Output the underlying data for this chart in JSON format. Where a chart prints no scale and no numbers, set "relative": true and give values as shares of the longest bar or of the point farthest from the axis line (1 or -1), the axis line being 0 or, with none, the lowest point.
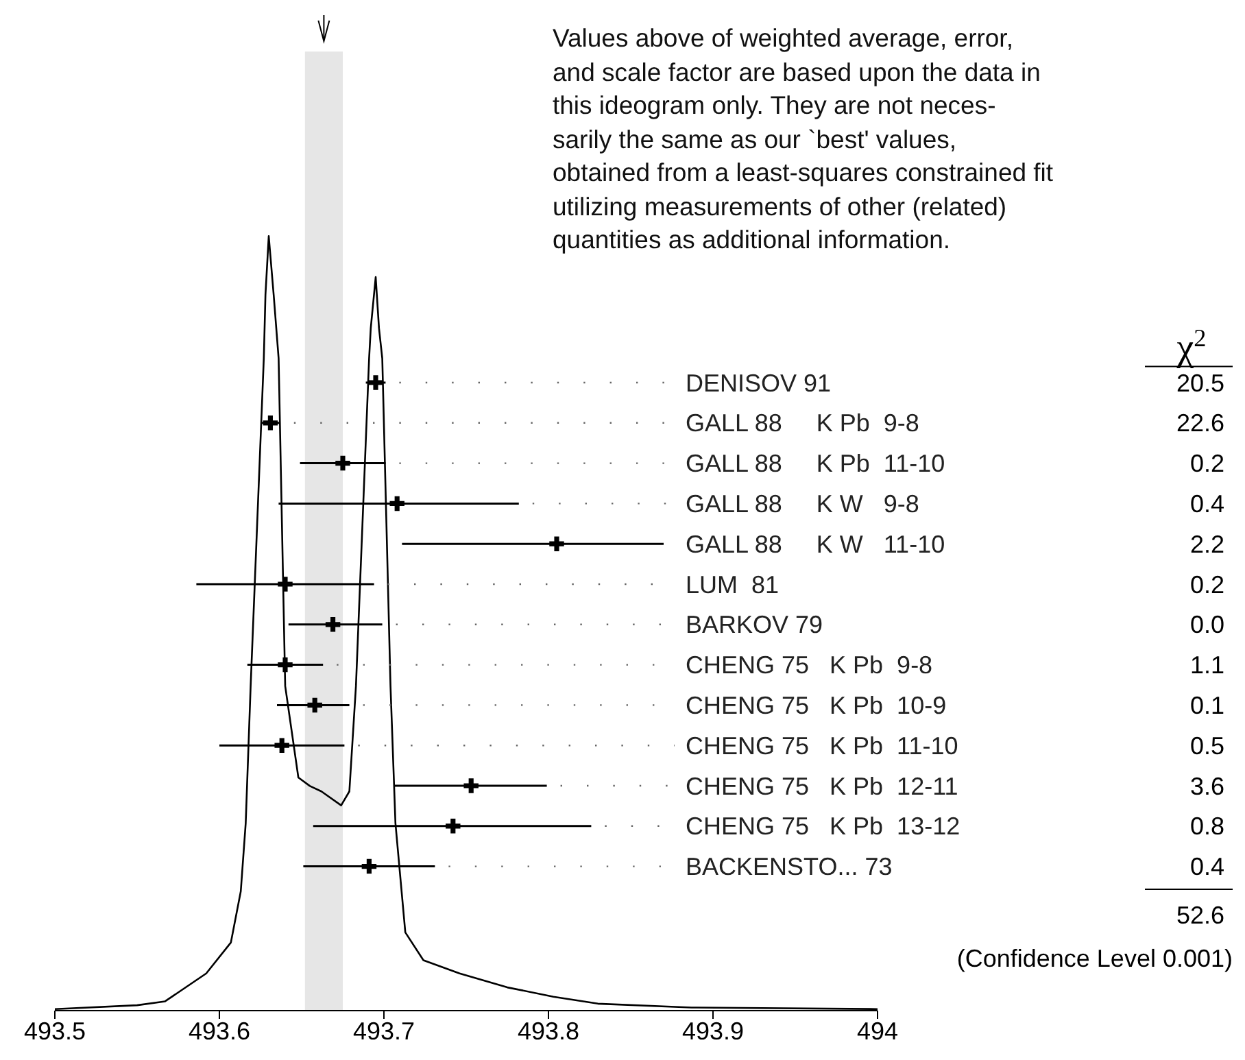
{
  "chart_data": [
    {
      "type": "line",
      "relative": true,
      "xlim": [
        493.5,
        494
      ],
      "xticks": [
        493.5,
        493.6,
        493.7,
        493.8,
        493.9,
        494
      ],
      "color": "#000000",
      "x": [
        493.5,
        493.55,
        493.567,
        493.592,
        493.607,
        493.613,
        493.616,
        493.619,
        493.627,
        493.628,
        493.63,
        493.633,
        493.636,
        493.64,
        493.648,
        493.655,
        493.662,
        493.674,
        493.679,
        493.683,
        493.691,
        493.692,
        493.695,
        493.697,
        493.699,
        493.704,
        493.707,
        493.713,
        493.724,
        493.746,
        493.775,
        493.803,
        493.83,
        493.887,
        494
      ],
      "values": [
        0.002,
        0.007,
        0.012,
        0.048,
        0.088,
        0.154,
        0.242,
        0.419,
        0.842,
        0.924,
        1,
        0.924,
        0.842,
        0.419,
        0.301,
        0.29,
        0.283,
        0.265,
        0.283,
        0.419,
        0.842,
        0.881,
        0.947,
        0.881,
        0.842,
        0.419,
        0.242,
        0.101,
        0.065,
        0.048,
        0.03,
        0.018,
        0.009,
        0.004,
        0.002
      ],
      "bands": [
        {
          "axis": "x",
          "from": 493.652,
          "to": 493.675,
          "color": "#e6e6e6"
        }
      ]
    },
    {
      "type": "scatter",
      "orientation": "horizontal",
      "xlim": [
        493.5,
        494
      ],
      "xticks": [
        493.5,
        493.6,
        493.7,
        493.8,
        493.9,
        494
      ],
      "tick_labels": false,
      "marker": "cross",
      "color": "#000000",
      "categories": [
        "DENISOV 91",
        "GALL 88     K Pb  9-8",
        "GALL 88     K Pb  11-10",
        "GALL 88     K W   9-8",
        "GALL 88     K W   11-10",
        "LUM  81",
        "BARKOV 79",
        "CHENG 75   K Pb  9-8",
        "CHENG 75   K Pb  10-9",
        "CHENG 75   K Pb  11-10",
        "CHENG 75   K Pb  12-11",
        "CHENG 75   K Pb  13-12",
        "BACKENSTO... 73"
      ],
      "values": [
        493.695,
        493.631,
        493.675,
        493.708,
        493.805,
        493.64,
        493.669,
        493.64,
        493.658,
        493.638,
        493.753,
        493.742,
        493.691
      ],
      "errors": [
        0.006,
        0.006,
        0.026,
        [
          493.636,
          493.782
        ],
        [
          493.711,
          493.87
        ],
        [
          493.586,
          493.694
        ],
        [
          493.642,
          493.699
        ],
        [
          493.617,
          493.663
        ],
        [
          493.635,
          493.679
        ],
        [
          493.6,
          493.676
        ],
        [
          493.706,
          493.799
        ],
        [
          493.657,
          493.826
        ],
        [
          493.651,
          493.731
        ]
      ],
      "annotations": [
        "Values above of weighted average, error,\nand scale factor are based upon the data in\nthis ideogram only.  They are not neces-\nsarily the same as our `best' values,\nobtained from a least-squares constrained fit\nutilizing measurements of other (related)\nquantities as additional information.",
        "χ$^{2}$",
        "20.5",
        "22.6",
        "0.2",
        "0.4",
        "2.2",
        "0.2",
        "0.0",
        "1.1",
        "0.1",
        "0.5",
        "3.6",
        "0.8",
        "0.4",
        "52.6",
        "(Confidence Level 0.001)"
      ]
    }
  ]
}
